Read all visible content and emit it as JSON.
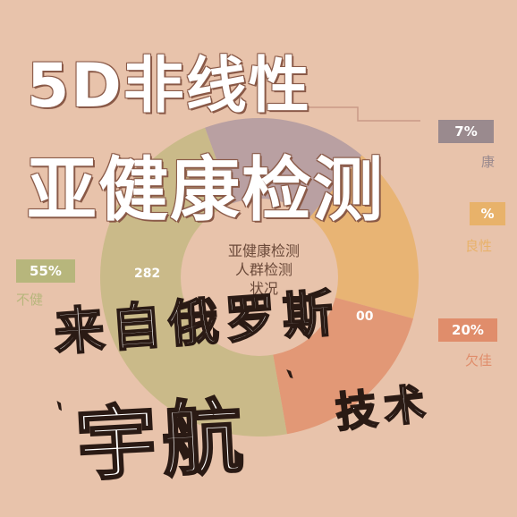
{
  "title": {
    "line1": "5D非线性",
    "line2": "亚健康检测"
  },
  "chart": {
    "center_line1": "亚健康检测",
    "center_line2": "人群检测",
    "center_line3": "状况",
    "value_left": "282",
    "value_right": "00",
    "tags": [
      {
        "text": "7%",
        "color": "#9a8a8e"
      },
      {
        "text": "%",
        "color": "#e8b26a"
      },
      {
        "text": "55%",
        "color": "#b7b67c"
      },
      {
        "text": "20%",
        "color": "#e08d6b"
      }
    ],
    "tag_labels": {
      "top_right": "康",
      "right": "良性",
      "left": "不健",
      "bottom_right": "欠佳"
    },
    "segment_colors": {
      "gray": "#b09aa0",
      "orange": "#e8b26a",
      "salmon": "#e0906c",
      "olive": "#c4b882"
    }
  },
  "overlay": {
    "line1": "来自俄罗斯",
    "line2": "宇航",
    "line3": "技术"
  }
}
